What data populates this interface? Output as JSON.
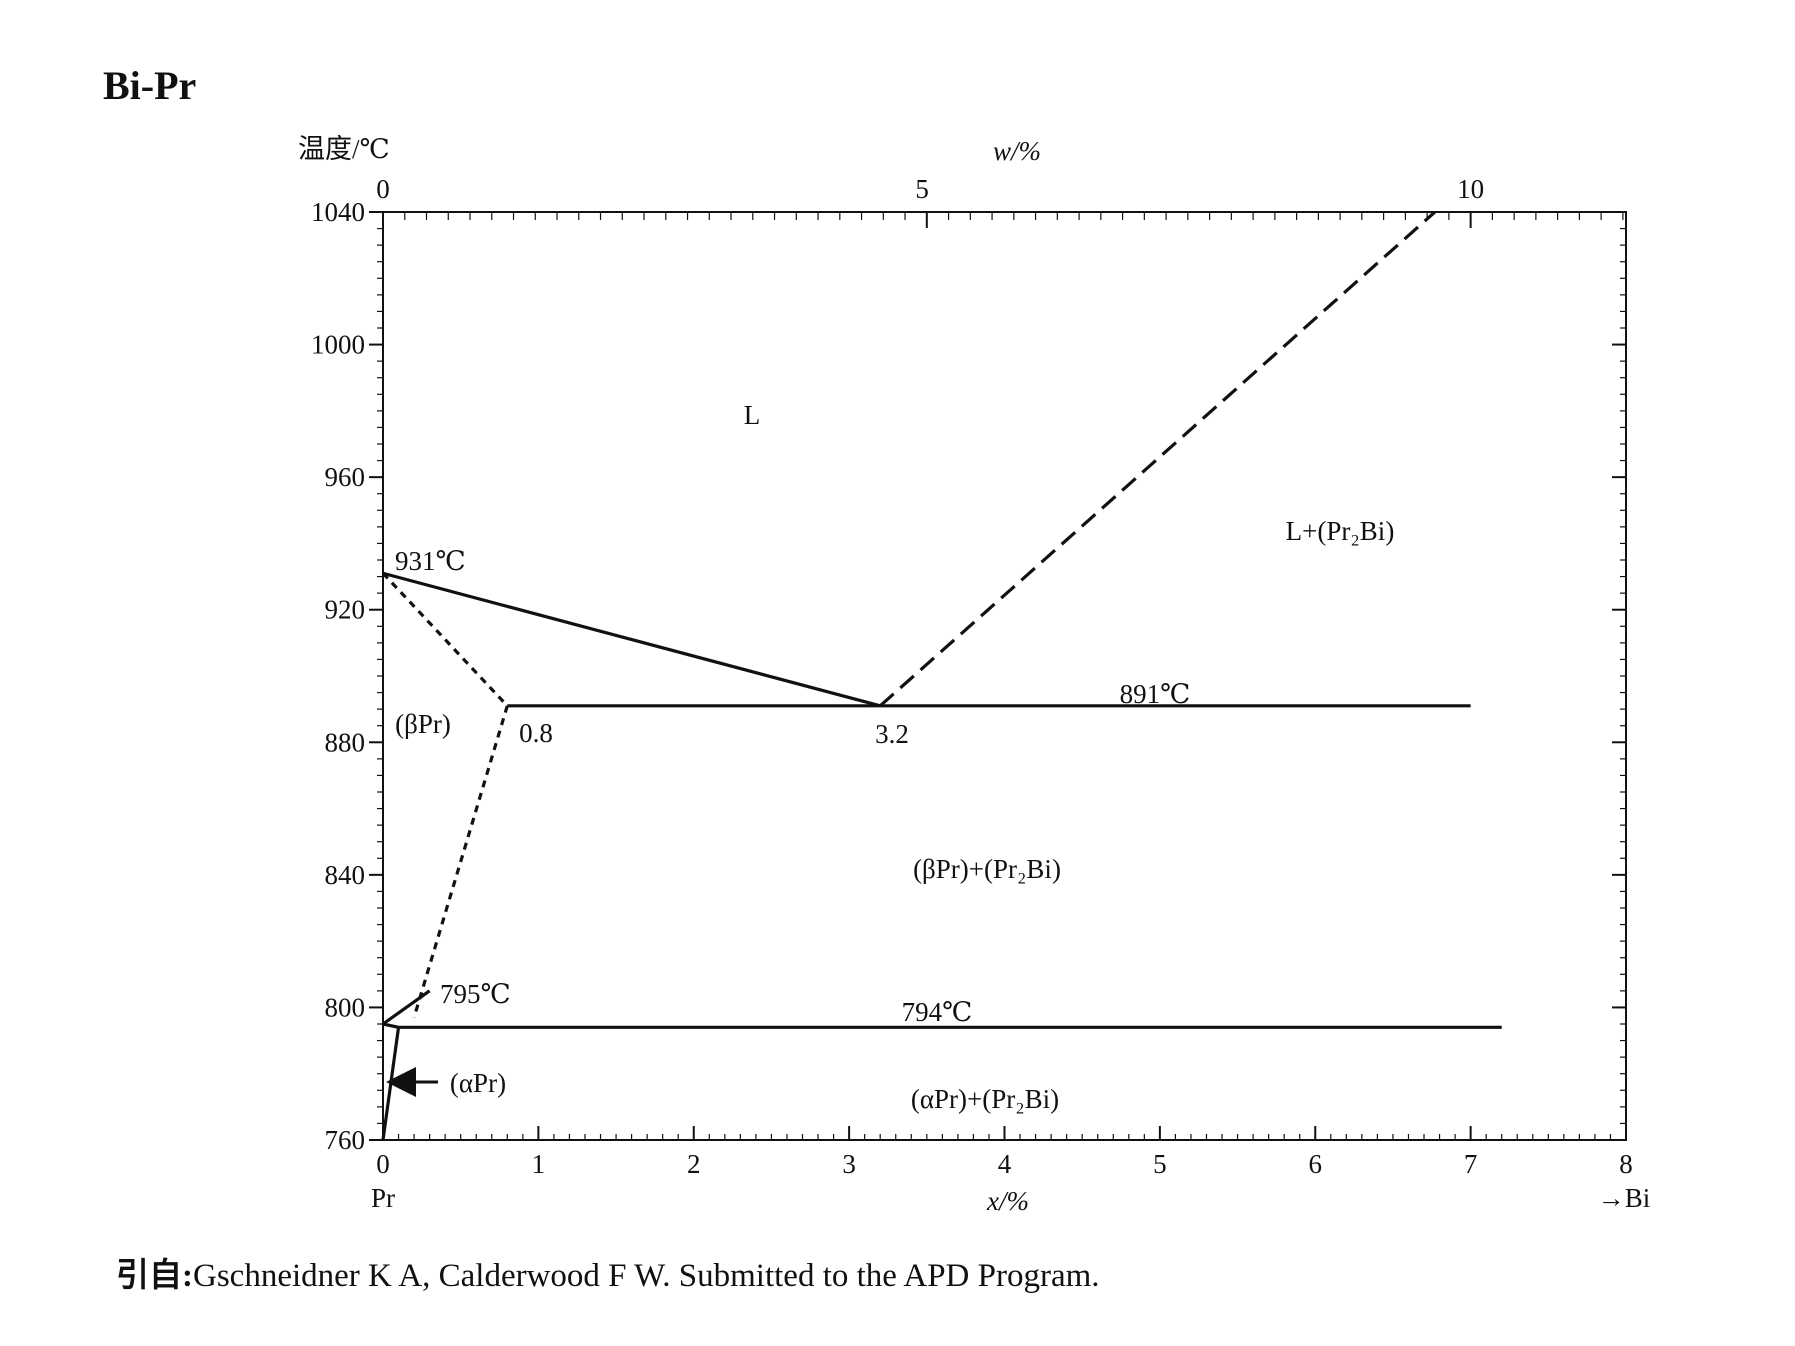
{
  "title": "Bi-Pr",
  "source_prefix": "引自",
  "source_text": "Gschneidner K A, Calderwood F W. Submitted to the APD Program.",
  "chart_data": {
    "type": "line",
    "title": "Bi-Pr",
    "ylabel": "温度/℃",
    "xlabel": "x/%",
    "x2label": "w/%",
    "ylim": [
      760,
      1040
    ],
    "xlim": [
      0,
      8
    ],
    "left_component": "Pr",
    "right_component": "→Bi",
    "y_ticks": [
      760,
      800,
      840,
      880,
      920,
      960,
      1000,
      1040
    ],
    "x_ticks": [
      0,
      1,
      2,
      3,
      4,
      5,
      6,
      7,
      8
    ],
    "x2_ticks": [
      {
        "label": "0",
        "x": 0
      },
      {
        "label": "5",
        "x": 3.47
      },
      {
        "label": "10",
        "x": 7.0
      }
    ],
    "series": [
      {
        "style": "solid",
        "points": [
          [
            0,
            931
          ],
          [
            3.2,
            891
          ]
        ]
      },
      {
        "style": "solid",
        "points": [
          [
            0.8,
            891
          ],
          [
            7.0,
            891
          ]
        ]
      },
      {
        "style": "dashed",
        "points": [
          [
            3.2,
            891
          ],
          [
            6.77,
            1040
          ]
        ]
      },
      {
        "style": "dotted",
        "points": [
          [
            0,
            931
          ],
          [
            0.8,
            891
          ]
        ]
      },
      {
        "style": "dotted",
        "points": [
          [
            0.8,
            891
          ],
          [
            0.2,
            797
          ]
        ]
      },
      {
        "style": "solid",
        "points": [
          [
            0.1,
            794
          ],
          [
            7.2,
            794
          ]
        ]
      },
      {
        "style": "solid",
        "points": [
          [
            0,
            795
          ],
          [
            0.3,
            805
          ]
        ]
      },
      {
        "style": "solid",
        "points": [
          [
            0,
            795
          ],
          [
            0.1,
            794
          ]
        ]
      },
      {
        "style": "solid",
        "points": [
          [
            0.1,
            794
          ],
          [
            0,
            760
          ]
        ]
      }
    ],
    "annotations": {
      "region_L": "L",
      "region_L_Pr2Bi": "L+(Pr₂Bi)",
      "region_betaPr": "(βPr)",
      "region_betaPr_Pr2Bi": "(βPr)+(Pr₂Bi)",
      "region_alphaPr": "(αPr)",
      "region_alphaPr_Pr2Bi": "(αPr)+(Pr₂Bi)",
      "t931": "931℃",
      "t891": "891℃",
      "t795": "795℃",
      "t794": "794℃",
      "c08": "0.8",
      "c32": "3.2"
    }
  }
}
